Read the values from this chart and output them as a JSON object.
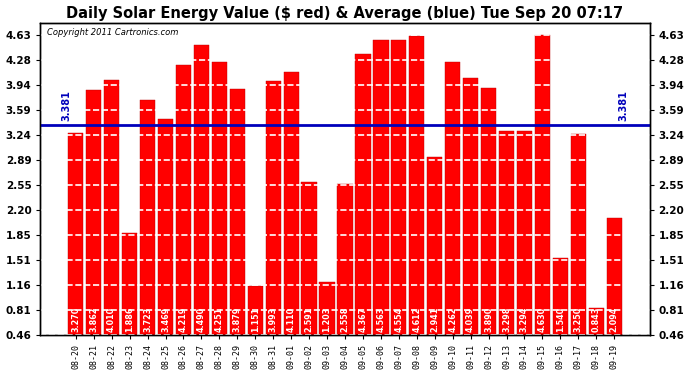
{
  "title": "Daily Solar Energy Value ($ red) & Average (blue) Tue Sep 20 07:17",
  "copyright": "Copyright 2011 Cartronics.com",
  "average": 3.381,
  "bar_color": "#ff0000",
  "avg_line_color": "#0000bb",
  "background_color": "#ffffff",
  "plot_bg_color": "#ffffff",
  "categories": [
    "08-20",
    "08-21",
    "08-22",
    "08-23",
    "08-24",
    "08-25",
    "08-26",
    "08-27",
    "08-28",
    "08-29",
    "08-30",
    "08-31",
    "09-01",
    "09-02",
    "09-03",
    "09-04",
    "09-05",
    "09-06",
    "09-07",
    "09-08",
    "09-09",
    "09-10",
    "09-11",
    "09-12",
    "09-13",
    "09-14",
    "09-15",
    "09-16",
    "09-17",
    "09-18",
    "09-19"
  ],
  "values": [
    3.27,
    3.862,
    4.01,
    1.886,
    3.723,
    3.469,
    4.219,
    4.49,
    4.251,
    3.879,
    1.151,
    3.993,
    4.11,
    2.591,
    1.203,
    2.558,
    4.367,
    4.563,
    4.554,
    4.612,
    2.941,
    4.262,
    4.039,
    3.89,
    3.298,
    3.294,
    4.63,
    1.54,
    3.25,
    0.843,
    2.094
  ],
  "bar_bottom": 0.46,
  "ylim_min": 0.46,
  "ylim_max": 4.795,
  "yticks": [
    0.46,
    0.81,
    1.16,
    1.51,
    1.85,
    2.2,
    2.55,
    2.89,
    3.24,
    3.59,
    3.94,
    4.28,
    4.63
  ],
  "grid_color": "#ffffff",
  "grid_style": "--",
  "title_fontsize": 10.5,
  "val_fontsize": 5.8,
  "ytick_fontsize": 7.5,
  "xtick_fontsize": 6.0
}
